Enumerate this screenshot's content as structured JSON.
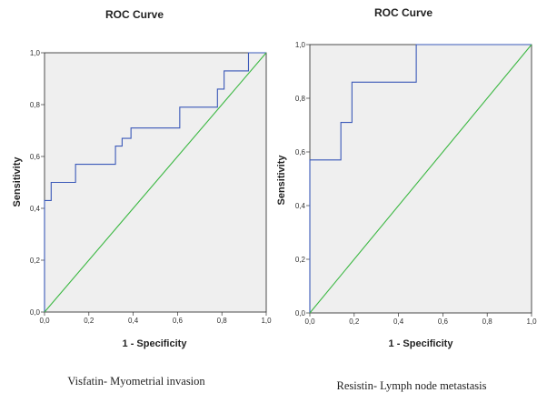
{
  "chart_data": [
    {
      "type": "line",
      "title": "ROC Curve",
      "xlabel": "1 - Specificity",
      "ylabel": "Sensitivity",
      "caption": "Visfatin- Myometrial invasion",
      "xlim": [
        0,
        1
      ],
      "ylim": [
        0,
        1
      ],
      "xticks": [
        "0,0",
        "0,2",
        "0,4",
        "0,6",
        "0,8",
        "1,0"
      ],
      "yticks": [
        "0,0",
        "0,2",
        "0,4",
        "0,6",
        "0,8",
        "1,0"
      ],
      "background": "#efefef",
      "series": [
        {
          "color": "#3a58b8",
          "x": [
            0,
            0,
            0.03,
            0.03,
            0.14,
            0.14,
            0.32,
            0.32,
            0.35,
            0.35,
            0.39,
            0.39,
            0.61,
            0.61,
            0.78,
            0.78,
            0.81,
            0.81,
            0.86,
            0.86,
            0.92,
            0.92,
            1.0
          ],
          "y": [
            0,
            0.43,
            0.43,
            0.5,
            0.5,
            0.57,
            0.57,
            0.64,
            0.64,
            0.67,
            0.67,
            0.71,
            0.71,
            0.79,
            0.79,
            0.86,
            0.86,
            0.93,
            0.93,
            0.93,
            0.93,
            1.0,
            1.0
          ]
        },
        {
          "color": "#3cb843",
          "x": [
            0,
            1
          ],
          "y": [
            0,
            1
          ]
        }
      ]
    },
    {
      "type": "line",
      "title": "ROC Curve",
      "xlabel": "1 - Specificity",
      "ylabel": "Sensitivity",
      "caption": "Resistin- Lymph node metastasis",
      "xlim": [
        0,
        1
      ],
      "ylim": [
        0,
        1
      ],
      "xticks": [
        "0,0",
        "0,2",
        "0,4",
        "0,6",
        "0,8",
        "1,0"
      ],
      "yticks": [
        "0,0",
        "0,2",
        "0,4",
        "0,6",
        "0,8",
        "1,0"
      ],
      "background": "#efefef",
      "series": [
        {
          "color": "#3a58b8",
          "x": [
            0,
            0,
            0.14,
            0.14,
            0.19,
            0.19,
            0.23,
            0.23,
            0.48,
            0.48,
            1.0
          ],
          "y": [
            0,
            0.57,
            0.57,
            0.71,
            0.71,
            0.86,
            0.86,
            0.86,
            0.86,
            1.0,
            1.0
          ]
        },
        {
          "color": "#3cb843",
          "x": [
            0,
            1
          ],
          "y": [
            0,
            1
          ]
        }
      ]
    }
  ]
}
